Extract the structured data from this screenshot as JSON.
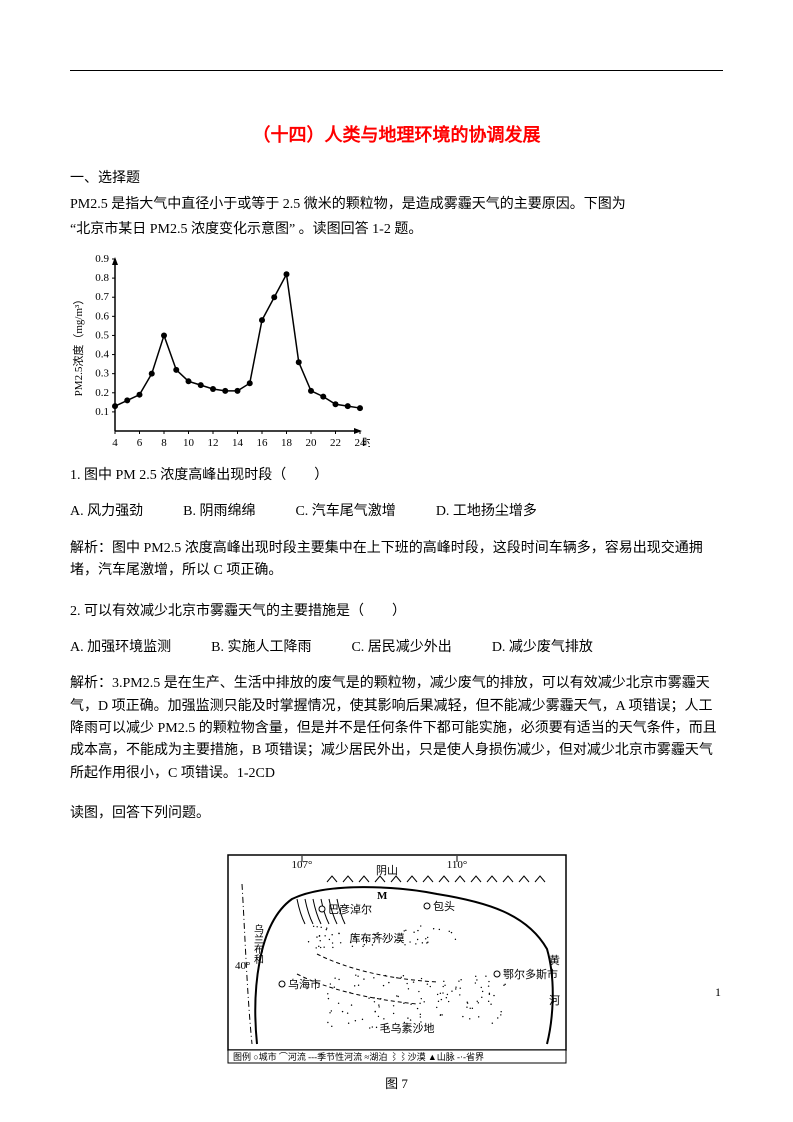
{
  "title": {
    "text": "（十四）人类与地理环境的协调发展",
    "color": "#ff0000",
    "fontsize": 18
  },
  "section_head": "一、选择题",
  "intro_line1": "PM2.5 是指大气中直径小于或等于 2.5 微米的颗粒物，是造成雾霾天气的主要原因。下图为",
  "intro_line2": "“北京市某日 PM2.5 浓度变化示意图” 。读图回答 1-2 题。",
  "chart": {
    "type": "line",
    "x_values": [
      4,
      6,
      8,
      10,
      12,
      14,
      16,
      18,
      20,
      22,
      24
    ],
    "x_ticks": [
      4,
      6,
      8,
      10,
      12,
      14,
      16,
      18,
      20,
      22,
      24
    ],
    "y_ticks": [
      0.1,
      0.2,
      0.3,
      0.4,
      0.5,
      0.6,
      0.7,
      0.8,
      0.9
    ],
    "points": [
      [
        4,
        0.13
      ],
      [
        5,
        0.16
      ],
      [
        6,
        0.19
      ],
      [
        7,
        0.3
      ],
      [
        8,
        0.5
      ],
      [
        9,
        0.32
      ],
      [
        10,
        0.26
      ],
      [
        11,
        0.24
      ],
      [
        12,
        0.22
      ],
      [
        13,
        0.21
      ],
      [
        14,
        0.21
      ],
      [
        15,
        0.25
      ],
      [
        16,
        0.58
      ],
      [
        17,
        0.7
      ],
      [
        18,
        0.82
      ],
      [
        19,
        0.36
      ],
      [
        20,
        0.21
      ],
      [
        21,
        0.18
      ],
      [
        22,
        0.14
      ],
      [
        23,
        0.13
      ],
      [
        24,
        0.12
      ]
    ],
    "ylabel": "PM2.5浓度（mg/m³）",
    "xlabel": "时",
    "line_color": "#000000",
    "marker_style": "circle",
    "marker_size": 3,
    "line_width": 1.5,
    "background_color": "#ffffff",
    "axis_color": "#000000",
    "font_size": 11
  },
  "q1": {
    "stem": "1. 图中 PM 2.5 浓度高峰出现时段（　　）",
    "optA": "A. 风力强劲",
    "optB": "B. 阴雨绵绵",
    "optC": "C. 汽车尾气激增",
    "optD": "D. 工地扬尘增多",
    "analysis": "解析：图中 PM2.5 浓度高峰出现时段主要集中在上下班的高峰时段，这段时间车辆多，容易出现交通拥堵，汽车尾激增，所以 C 项正确。"
  },
  "q2": {
    "stem": "2. 可以有效减少北京市雾霾天气的主要措施是（　　）",
    "optA": "A. 加强环境监测",
    "optB": "B. 实施人工降雨",
    "optC": "C. 居民减少外出",
    "optD": "D. 减少废气排放",
    "analysis": "解析：3.PM2.5 是在生产、生活中排放的废气是的颗粒物，减少废气的排放，可以有效减少北京市雾霾天气，D 项正确。加强监测只能及时掌握情况，使其影响后果减轻，但不能减少雾霾天气，A 项错误；人工降雨可以减少 PM2.5 的颗粒物含量，但是并不是任何条件下都可能实施，必须要有适当的天气条件，而且成本高，不能成为主要措施，B 项错误；减少居民外出，只是使人身损伤减少，但对减少北京市雾霾天气所起作用很小，C 项错误。1-2CD",
    "tail": "读图，回答下列问题。"
  },
  "map": {
    "type": "map",
    "caption": "图 7",
    "lon_labels": [
      "107°",
      "110°"
    ],
    "lat_label": "40°",
    "cities": [
      "巴彦淖尔",
      "包头",
      "乌海市",
      "鄂尔多斯市"
    ],
    "features": [
      "库布齐沙漠",
      "毛乌素沙地",
      "M",
      "黄河",
      "阴山"
    ],
    "legend": "图例 ○城市 ⌒河流 ---季节性河流 ≈湖泊 ⌇⌇沙漠 ▲山脉 -·-省界",
    "line_color": "#000000",
    "background_color": "#ffffff",
    "font_size": 11
  },
  "page_number": "1"
}
